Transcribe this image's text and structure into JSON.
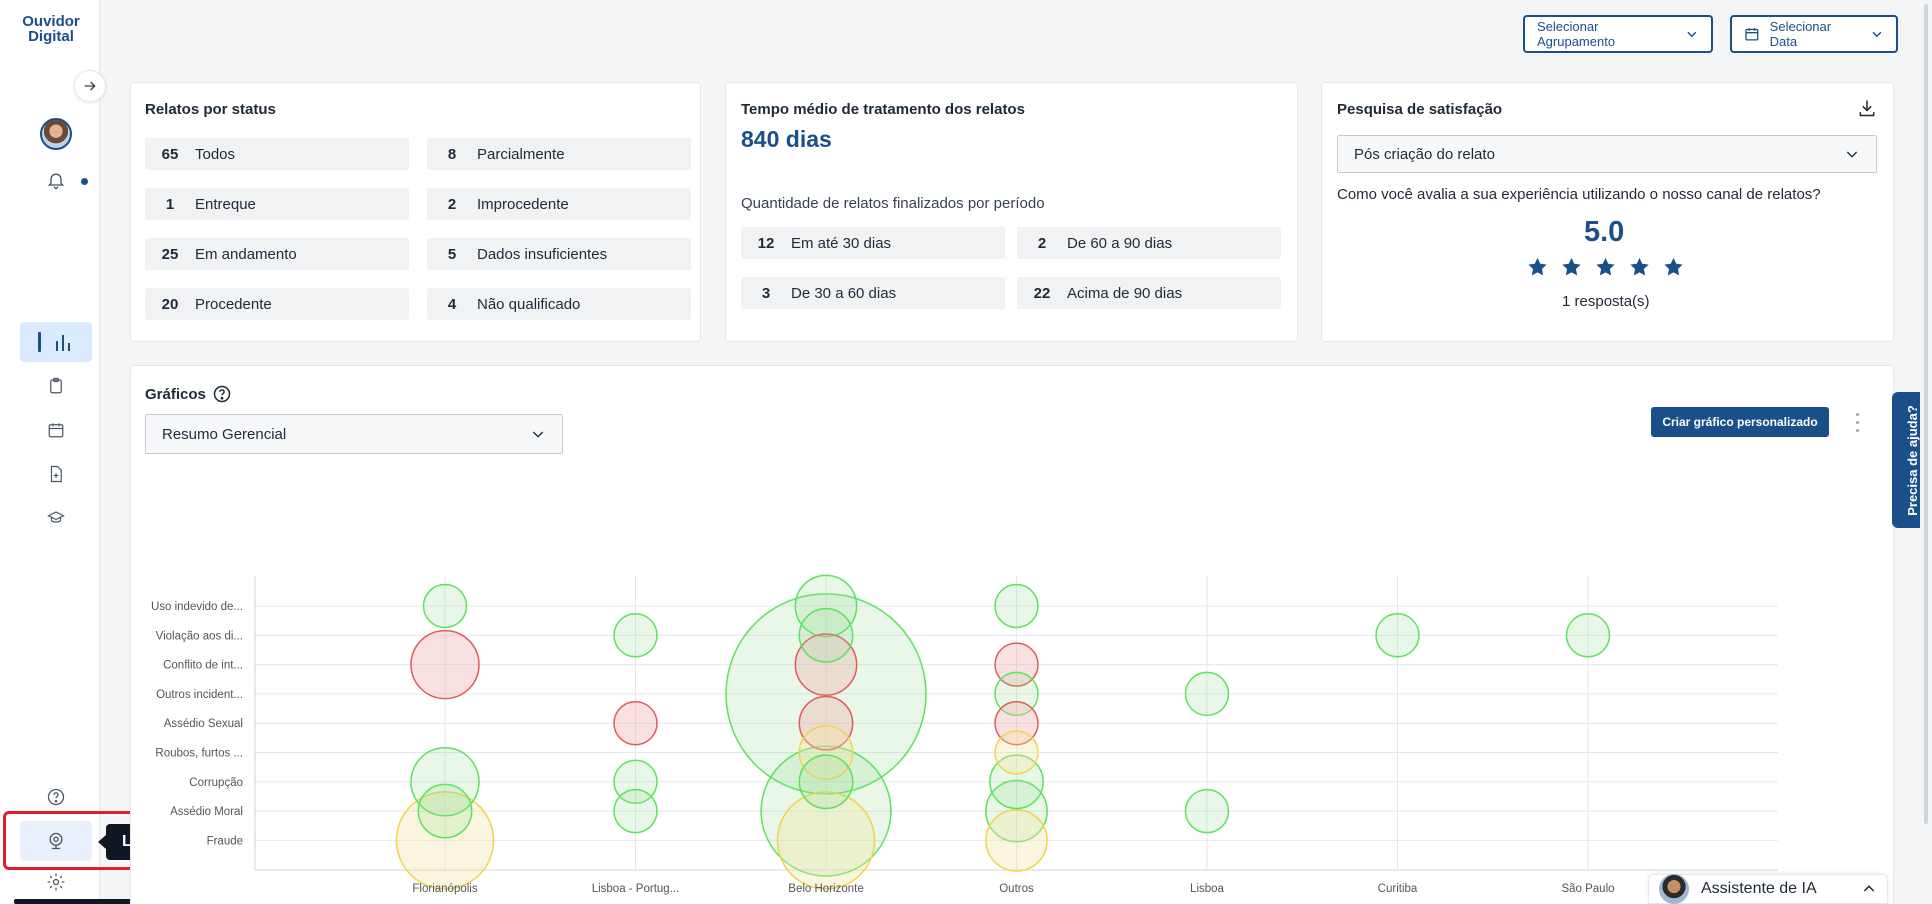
{
  "app": {
    "logo_line1": "Ouvidor",
    "logo_line2": "Digital"
  },
  "sidebar": {
    "items": [
      {
        "name": "dashboard",
        "icon": "bar-chart-icon",
        "active": true
      },
      {
        "name": "reports",
        "icon": "clipboard-icon"
      },
      {
        "name": "calendar",
        "icon": "calendar-icon"
      },
      {
        "name": "new-document",
        "icon": "file-plus-icon"
      },
      {
        "name": "training",
        "icon": "graduation-cap-icon"
      },
      {
        "name": "help",
        "icon": "help-circle-icon"
      },
      {
        "name": "logs",
        "icon": "webcam-icon"
      },
      {
        "name": "settings",
        "icon": "gear-icon"
      }
    ],
    "tooltip": "Logs"
  },
  "toolbar": {
    "grouping_label": "Selecionar Agrupamento",
    "date_label": "Selecionar Data"
  },
  "status_card": {
    "title": "Relatos por status",
    "left": [
      {
        "count": "65",
        "label": "Todos"
      },
      {
        "count": "1",
        "label": "Entreque"
      },
      {
        "count": "25",
        "label": "Em andamento"
      },
      {
        "count": "20",
        "label": "Procedente"
      }
    ],
    "right": [
      {
        "count": "8",
        "label": "Parcialmente"
      },
      {
        "count": "2",
        "label": "Improcedente"
      },
      {
        "count": "5",
        "label": "Dados insuficientes"
      },
      {
        "count": "4",
        "label": "Não qualificado"
      }
    ]
  },
  "time_card": {
    "title": "Tempo médio de tratamento dos relatos",
    "value": "840 dias",
    "subtitle": "Quantidade de relatos finalizados por período",
    "periods": [
      {
        "count": "12",
        "label": "Em até 30 dias"
      },
      {
        "count": "2",
        "label": "De 60 a 90 dias"
      },
      {
        "count": "3",
        "label": "De 30 a 60 dias"
      },
      {
        "count": "22",
        "label": "Acima de 90 dias"
      }
    ]
  },
  "satisfaction_card": {
    "title": "Pesquisa de satisfação",
    "select_value": "Pós criação do relato",
    "question": "Como você avalia a sua experiência utilizando o nosso canal de relatos?",
    "score": "5.0",
    "stars": 5,
    "responses": "1 resposta(s)"
  },
  "charts": {
    "title": "Gráficos",
    "select_value": "Resumo Gerencial",
    "create_button": "Criar gráfico personalizado"
  },
  "help_tab": "Precisa de ajuda?",
  "ai_assistant": "Assistente de IA",
  "colors": {
    "brand": "#1b4f8a",
    "green": "#4ade4a",
    "red": "#e55353",
    "yellow": "#f5d04a"
  },
  "chart_data": {
    "type": "bubble",
    "categories_x": [
      "Florianópolis",
      "Lisboa - Portug...",
      "Belo Horizonte",
      "Outros",
      "Lisboa",
      "Curitiba",
      "São Paulo"
    ],
    "categories_y": [
      "Uso indevido de...",
      "Violação aos di...",
      "Conflito de int...",
      "Outros incident...",
      "Assédio Sexual",
      "Roubos, furtos ...",
      "Corrupção",
      "Assédio Moral",
      "Fraude"
    ],
    "points": [
      {
        "x": "Florianópolis",
        "y": "Uso indevido de...",
        "size": 1,
        "color": "green"
      },
      {
        "x": "Florianópolis",
        "y": "Conflito de int...",
        "size": 4,
        "color": "red"
      },
      {
        "x": "Florianópolis",
        "y": "Corrupção",
        "size": 4,
        "color": "green"
      },
      {
        "x": "Florianópolis",
        "y": "Assédio Moral",
        "size": 2,
        "color": "green"
      },
      {
        "x": "Florianópolis",
        "y": "Fraude",
        "size": 10,
        "color": "yellow"
      },
      {
        "x": "Lisboa - Portug...",
        "y": "Violação aos di...",
        "size": 1,
        "color": "green"
      },
      {
        "x": "Lisboa - Portug...",
        "y": "Assédio Sexual",
        "size": 1,
        "color": "red"
      },
      {
        "x": "Lisboa - Portug...",
        "y": "Corrupção",
        "size": 1,
        "color": "green"
      },
      {
        "x": "Lisboa - Portug...",
        "y": "Assédio Moral",
        "size": 1,
        "color": "green"
      },
      {
        "x": "Belo Horizonte",
        "y": "Uso indevido de...",
        "size": 3,
        "color": "green"
      },
      {
        "x": "Belo Horizonte",
        "y": "Violação aos di...",
        "size": 2,
        "color": "green"
      },
      {
        "x": "Belo Horizonte",
        "y": "Conflito de int...",
        "size": 3,
        "color": "red"
      },
      {
        "x": "Belo Horizonte",
        "y": "Outros incident...",
        "size": 60,
        "color": "green"
      },
      {
        "x": "Belo Horizonte",
        "y": "Assédio Sexual",
        "size": 2,
        "color": "red"
      },
      {
        "x": "Belo Horizonte",
        "y": "Roubos, furtos ...",
        "size": 2,
        "color": "yellow"
      },
      {
        "x": "Belo Horizonte",
        "y": "Corrupção",
        "size": 2,
        "color": "green"
      },
      {
        "x": "Belo Horizonte",
        "y": "Assédio Moral",
        "size": 20,
        "color": "green"
      },
      {
        "x": "Belo Horizonte",
        "y": "Fraude",
        "size": 10,
        "color": "yellow"
      },
      {
        "x": "Outros",
        "y": "Uso indevido de...",
        "size": 1,
        "color": "green"
      },
      {
        "x": "Outros",
        "y": "Conflito de int...",
        "size": 1,
        "color": "red"
      },
      {
        "x": "Outros",
        "y": "Outros incident...",
        "size": 1,
        "color": "green"
      },
      {
        "x": "Outros",
        "y": "Assédio Sexual",
        "size": 1,
        "color": "red"
      },
      {
        "x": "Outros",
        "y": "Roubos, furtos ...",
        "size": 1,
        "color": "yellow"
      },
      {
        "x": "Outros",
        "y": "Corrupção",
        "size": 2,
        "color": "green"
      },
      {
        "x": "Outros",
        "y": "Assédio Moral",
        "size": 3,
        "color": "green"
      },
      {
        "x": "Outros",
        "y": "Fraude",
        "size": 3,
        "color": "yellow"
      },
      {
        "x": "Lisboa",
        "y": "Outros incident...",
        "size": 1,
        "color": "green"
      },
      {
        "x": "Lisboa",
        "y": "Assédio Moral",
        "size": 1,
        "color": "green"
      },
      {
        "x": "Curitiba",
        "y": "Violação aos di...",
        "size": 1,
        "color": "green"
      },
      {
        "x": "São Paulo",
        "y": "Violação aos di...",
        "size": 1,
        "color": "green"
      }
    ],
    "grid": true
  }
}
